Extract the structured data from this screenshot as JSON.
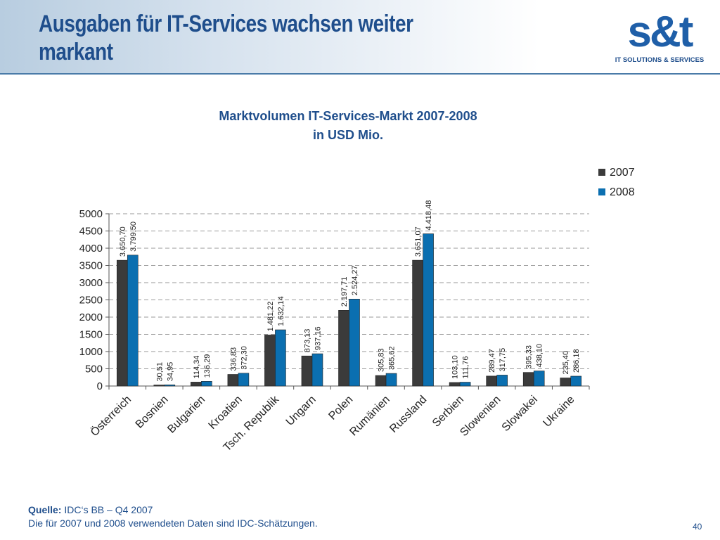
{
  "header": {
    "title": "Ausgaben für IT-Services wachsen weiter markant",
    "logo_text": "s&t",
    "logo_tagline": "IT SOLUTIONS & SERVICES"
  },
  "chart_data": {
    "type": "bar",
    "title": "Marktvolumen IT-Services-Markt 2007-2008",
    "subtitle": "in USD Mio.",
    "xlabel": "",
    "ylabel": "",
    "ylim": [
      0,
      5000
    ],
    "yticks": [
      0,
      500,
      1000,
      1500,
      2000,
      2500,
      3000,
      3500,
      4000,
      4500,
      5000
    ],
    "grid": true,
    "legend_position": "top-right",
    "categories": [
      "Österreich",
      "Bosnien",
      "Bulgarien",
      "Kroatien",
      "Tsch. Republik",
      "Ungarn",
      "Polen",
      "Rumänien",
      "Russland",
      "Serbien",
      "Slowenien",
      "Slowakei",
      "Ukraine"
    ],
    "series": [
      {
        "name": "2007",
        "color": "#3b3b3b",
        "values": [
          3650.7,
          30.51,
          114.34,
          336.83,
          1481.22,
          873.13,
          2197.71,
          305.83,
          3651.07,
          103.1,
          289.47,
          395.33,
          235.4
        ],
        "labels": [
          "3.650,70",
          "30,51",
          "114,34",
          "336,83",
          "1.481,22",
          "873,13",
          "2.197,71",
          "305,83",
          "3.651,07",
          "103,10",
          "289,47",
          "395,33",
          "235,40"
        ]
      },
      {
        "name": "2008",
        "color": "#0b6fb0",
        "values": [
          3799.5,
          34.95,
          136.29,
          372.3,
          1632.14,
          937.16,
          2524.27,
          365.62,
          4418.48,
          111.76,
          317.75,
          438.1,
          286.18
        ],
        "labels": [
          "3.799,50",
          "34,95",
          "136,29",
          "372,30",
          "1.632,14",
          "937,16",
          "2.524,27",
          "365,62",
          "4.418,48",
          "111,76",
          "317,75",
          "438,10",
          "286,18"
        ]
      }
    ]
  },
  "footer": {
    "source_label": "Quelle:",
    "source_text": "IDC‘s BB – Q4 2007",
    "note": "Die für 2007 und 2008 verwendeten Daten sind IDC-Schätzungen.",
    "page_number": "40"
  }
}
